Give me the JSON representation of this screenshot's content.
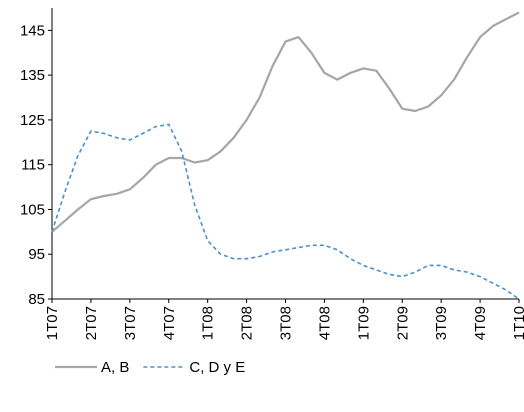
{
  "chart_data": {
    "type": "line",
    "categories": [
      "1T07",
      null,
      null,
      "2T07",
      null,
      null,
      "3T07",
      null,
      null,
      "4T07",
      null,
      null,
      "1T08",
      null,
      null,
      "2T08",
      null,
      null,
      "3T08",
      null,
      null,
      "4T08",
      null,
      null,
      "1T09",
      null,
      null,
      "2T09",
      null,
      null,
      "3T09",
      null,
      null,
      "4T09",
      null,
      null,
      "1T10"
    ],
    "series": [
      {
        "name": "A, B",
        "color": "#a6a6a6",
        "dash": false,
        "values": [
          100,
          102.5,
          105,
          107.3,
          108,
          108.5,
          109.5,
          112,
          115,
          116.5,
          116.5,
          115.5,
          116,
          118,
          121,
          125,
          130,
          137,
          142.5,
          143.5,
          140,
          135.5,
          134,
          135.5,
          136.5,
          136,
          132,
          127.5,
          127,
          128,
          130.5,
          134,
          139,
          143.5,
          146,
          147.5,
          149
        ]
      },
      {
        "name": "C, D y E",
        "color": "#4a8fd0",
        "dash": true,
        "values": [
          100,
          109,
          117,
          122.5,
          122,
          121,
          120.5,
          122,
          123.5,
          124,
          118,
          106,
          98,
          95,
          94,
          94,
          94.5,
          95.5,
          96,
          96.5,
          97,
          97,
          96,
          94,
          92.5,
          91.5,
          90.5,
          90,
          91,
          92.5,
          92.5,
          91.5,
          91,
          90,
          88.5,
          87,
          85
        ]
      }
    ],
    "ylim": [
      85,
      150
    ],
    "yticks": [
      85,
      95,
      105,
      115,
      125,
      135,
      145
    ],
    "grid": false
  }
}
